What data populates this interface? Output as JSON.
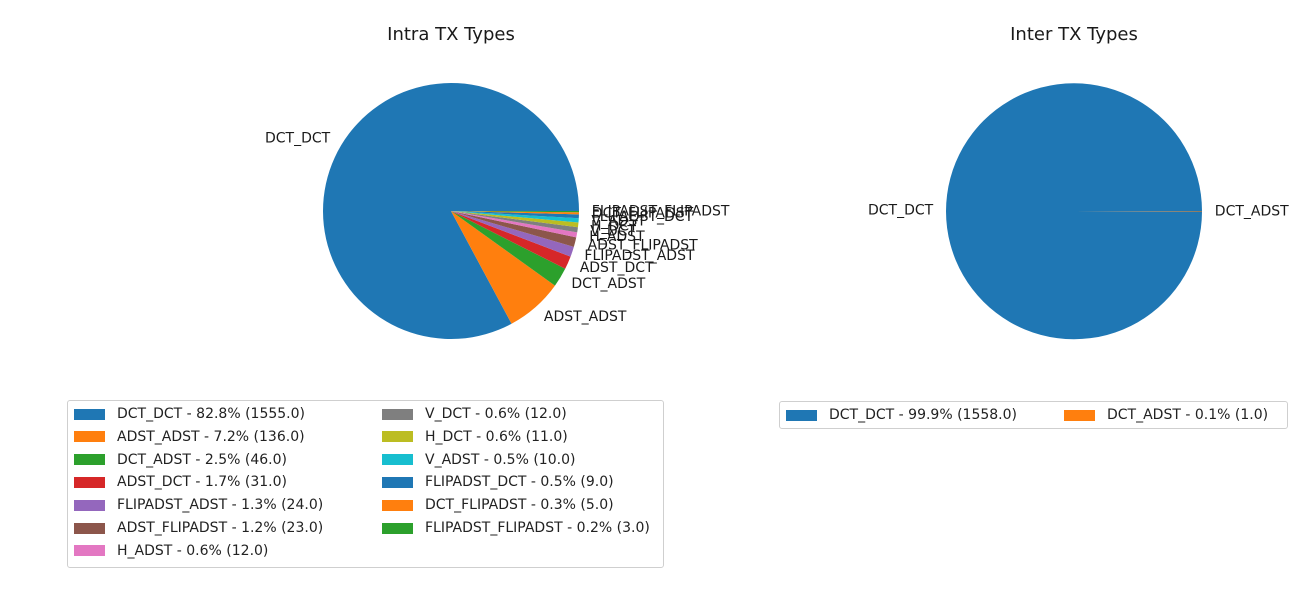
{
  "chart_data": [
    {
      "type": "pie",
      "title": "Intra TX Types",
      "categories": [
        "DCT_DCT",
        "ADST_ADST",
        "DCT_ADST",
        "ADST_DCT",
        "FLIPADST_ADST",
        "ADST_FLIPADST",
        "H_ADST",
        "V_DCT",
        "H_DCT",
        "V_ADST",
        "FLIPADST_DCT",
        "DCT_FLIPADST",
        "FLIPADST_FLIPADST"
      ],
      "values": [
        1555.0,
        136.0,
        46.0,
        31.0,
        24.0,
        23.0,
        12.0,
        12.0,
        11.0,
        10.0,
        9.0,
        5.0,
        3.0
      ],
      "colors": [
        "#1f77b4",
        "#ff7f0e",
        "#2ca02c",
        "#d62728",
        "#9467bd",
        "#8c564b",
        "#e377c2",
        "#7f7f7f",
        "#bcbd22",
        "#17becf",
        "#1f77b4",
        "#ff7f0e",
        "#2ca02c"
      ],
      "legend_labels": [
        "DCT_DCT - 82.8% (1555.0)",
        "ADST_ADST - 7.2% (136.0)",
        "DCT_ADST - 2.5% (46.0)",
        "ADST_DCT - 1.7% (31.0)",
        "FLIPADST_ADST - 1.3% (24.0)",
        "ADST_FLIPADST - 1.2% (23.0)",
        "H_ADST - 0.6% (12.0)",
        "V_DCT - 0.6% (12.0)",
        "H_DCT - 0.6% (11.0)",
        "V_ADST - 0.5% (10.0)",
        "FLIPADST_DCT - 0.5% (9.0)",
        "DCT_FLIPADST - 0.3% (5.0)",
        "FLIPADST_FLIPADST - 0.2% (3.0)"
      ],
      "legend_placement": "bottom",
      "legend_columns": 2
    },
    {
      "type": "pie",
      "title": "Inter TX Types",
      "categories": [
        "DCT_DCT",
        "DCT_ADST"
      ],
      "values": [
        1558.0,
        1.0
      ],
      "colors": [
        "#1f77b4",
        "#ff7f0e"
      ],
      "legend_labels": [
        "DCT_DCT - 99.9% (1558.0)",
        "DCT_ADST - 0.1% (1.0)"
      ],
      "legend_placement": "bottom",
      "legend_columns": 2
    }
  ]
}
